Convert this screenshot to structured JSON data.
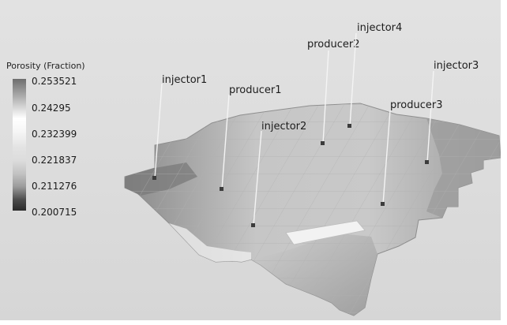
{
  "legend": {
    "title": "Porosity (Fraction)",
    "ticks": [
      "0.253521",
      "0.24295",
      "0.232399",
      "0.221837",
      "0.211276",
      "0.200715"
    ],
    "colormap": "grayscale"
  },
  "wells": [
    {
      "name": "injector1"
    },
    {
      "name": "producer1"
    },
    {
      "name": "injector2"
    },
    {
      "name": "producer2"
    },
    {
      "name": "injector4"
    },
    {
      "name": "injector3"
    },
    {
      "name": "producer3"
    }
  ],
  "colors": {
    "background": "#dedede",
    "well_line": "#f4f4f4",
    "well_marker": "#3c3c3c"
  }
}
